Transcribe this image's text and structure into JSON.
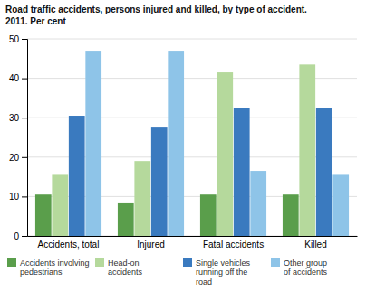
{
  "chart_data": {
    "type": "bar",
    "title": "Road traffic accidents, persons injured and killed, by type of accident.",
    "subtitle": "2011. Per cent",
    "categories": [
      "Accidents, total",
      "Injured",
      "Fatal accidents",
      "Killed"
    ],
    "series": [
      {
        "name": "Accidents involving\npedestrians",
        "color": "#5a9e4b",
        "values": [
          10.5,
          8.5,
          10.5,
          10.5
        ]
      },
      {
        "name": "Head-on\naccidents",
        "color": "#b5d99c",
        "values": [
          15.5,
          19.0,
          41.5,
          43.5
        ]
      },
      {
        "name": "Single vehicles\nrunning off the\nroad",
        "color": "#3a7abf",
        "values": [
          30.5,
          27.5,
          32.5,
          32.5
        ]
      },
      {
        "name": "Other group\nof accidents",
        "color": "#8ec4e8",
        "values": [
          47.0,
          47.0,
          16.5,
          15.5
        ]
      }
    ],
    "ylim": [
      0,
      50
    ],
    "yticks": [
      0,
      10,
      20,
      30,
      40,
      50
    ],
    "grid": true,
    "legend": "bottom"
  }
}
